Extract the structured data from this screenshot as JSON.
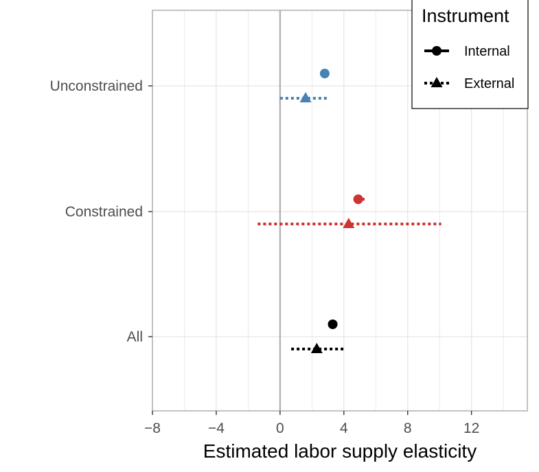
{
  "chart_data": {
    "type": "scatter",
    "title": "",
    "xlabel": "Estimated labor supply elasticity",
    "ylabel": "",
    "xlim": [
      -8,
      15.5
    ],
    "x_ticks": [
      -8,
      -4,
      0,
      4,
      8,
      12
    ],
    "x_tick_labels": [
      "−8",
      "−4",
      "0",
      "4",
      "8",
      "12"
    ],
    "categories": [
      "Unconstrained",
      "Constrained",
      "All"
    ],
    "reference_line_x": 0,
    "legend": {
      "title": "Instrument",
      "placement": "top-right",
      "entries": [
        {
          "label": "Internal",
          "shape": "circle",
          "line": "solid"
        },
        {
          "label": "External",
          "shape": "triangle",
          "line": "dotted"
        }
      ]
    },
    "series": [
      {
        "name": "Internal",
        "shape": "circle",
        "line": "solid",
        "points": [
          {
            "category": "Unconstrained",
            "estimate": 2.8,
            "ci_low": 2.8,
            "ci_high": 2.8,
            "color": "#4682b4"
          },
          {
            "category": "Constrained",
            "estimate": 4.9,
            "ci_low": 4.6,
            "ci_high": 5.3,
            "color": "#cd3333"
          },
          {
            "category": "All",
            "estimate": 3.3,
            "ci_low": 3.3,
            "ci_high": 3.3,
            "color": "#000000"
          }
        ]
      },
      {
        "name": "External",
        "shape": "triangle",
        "line": "dotted",
        "points": [
          {
            "category": "Unconstrained",
            "estimate": 1.6,
            "ci_low": 0.0,
            "ci_high": 3.1,
            "color": "#4682b4"
          },
          {
            "category": "Constrained",
            "estimate": 4.3,
            "ci_low": -1.4,
            "ci_high": 10.1,
            "color": "#cd3333"
          },
          {
            "category": "All",
            "estimate": 2.3,
            "ci_low": 0.7,
            "ci_high": 4.0,
            "color": "#000000"
          }
        ]
      }
    ]
  }
}
